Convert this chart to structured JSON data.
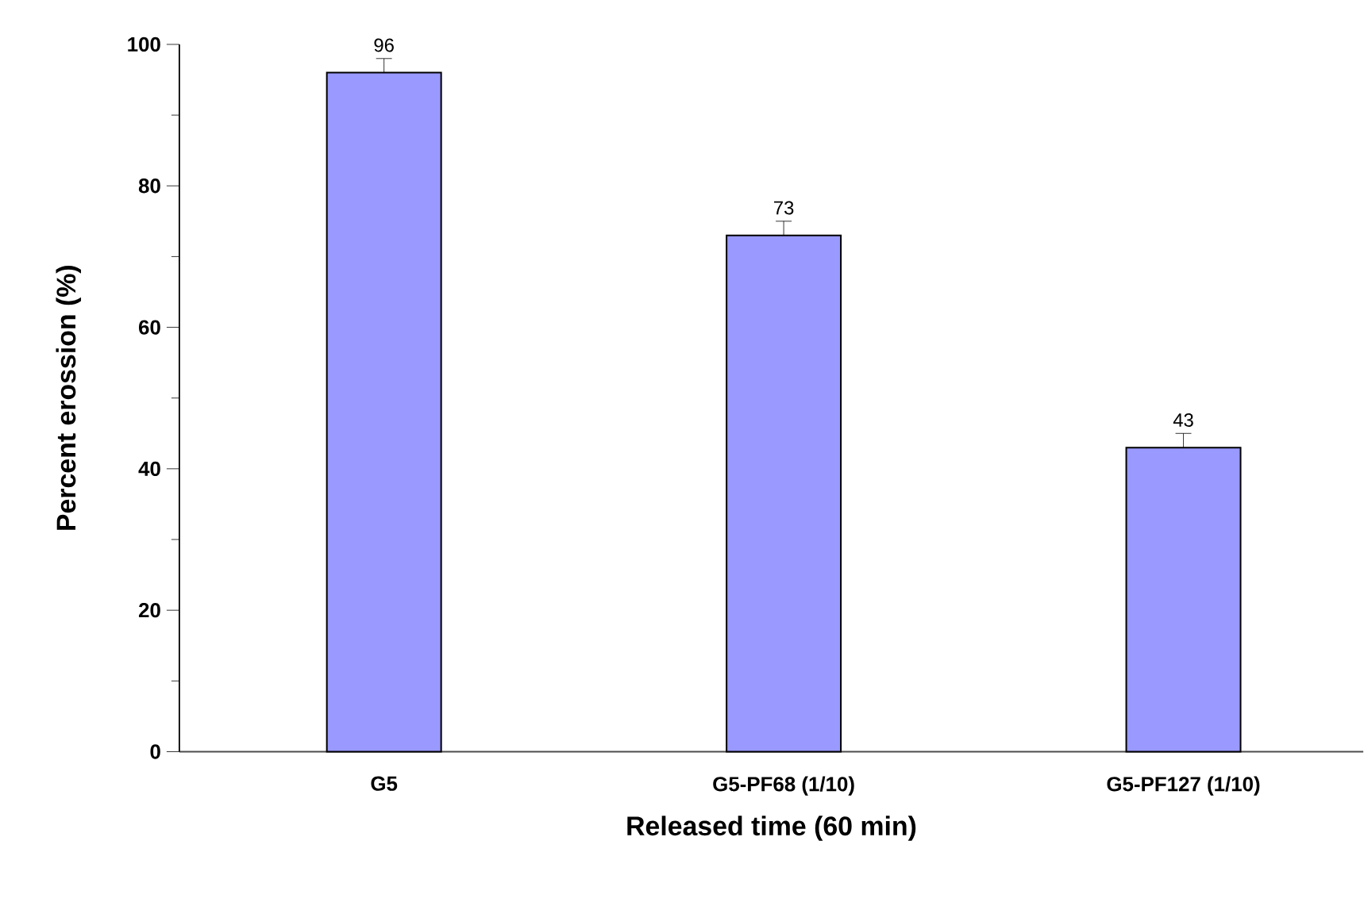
{
  "chart_data": {
    "type": "bar",
    "xlabel": "Released time (60 min)",
    "ylabel": "Percent erossion (%)",
    "categories": [
      "G5",
      "G5-PF68 (1/10)",
      "G5-PF127 (1/10)"
    ],
    "values": [
      96,
      73,
      43
    ],
    "errors": [
      2,
      2,
      2
    ],
    "color": "#9999ff",
    "data_labels": true,
    "grid": false,
    "ylim": [
      0,
      100
    ],
    "yticks": [
      0,
      {
        "value": 10,
        "label": null
      },
      20,
      {
        "value": 30,
        "label": null
      },
      40,
      {
        "value": 50,
        "label": null
      },
      60,
      {
        "value": 70,
        "label": null
      },
      80,
      {
        "value": 90,
        "label": null
      },
      100
    ]
  }
}
